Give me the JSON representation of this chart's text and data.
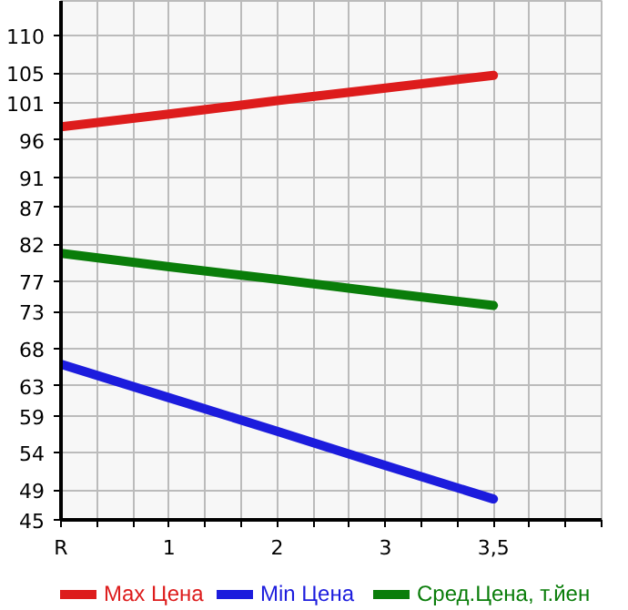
{
  "chart_data": {
    "type": "line",
    "categories": [
      "R",
      "1",
      "2",
      "3",
      "3,5"
    ],
    "series": [
      {
        "name": "Max Цена",
        "color": "#dd1c1c",
        "values": [
          97.8,
          99.5,
          101.3,
          103.0,
          104.7
        ]
      },
      {
        "name": "Min Цена",
        "color": "#1c1cdd",
        "values": [
          65.9,
          61.4,
          56.9,
          52.3,
          47.8
        ]
      },
      {
        "name": "Сред.Цена, т.йен",
        "color": "#0a7d0a",
        "values": [
          80.8,
          79.0,
          77.3,
          75.5,
          73.8
        ]
      }
    ],
    "ylim": [
      45,
      114.7
    ],
    "yticks": [
      45,
      49,
      54,
      59,
      63,
      68,
      73,
      77,
      82,
      87,
      91,
      96,
      101,
      105,
      110
    ],
    "grid": true,
    "legend": "bottom",
    "marker": "none",
    "line_style": "solid"
  }
}
